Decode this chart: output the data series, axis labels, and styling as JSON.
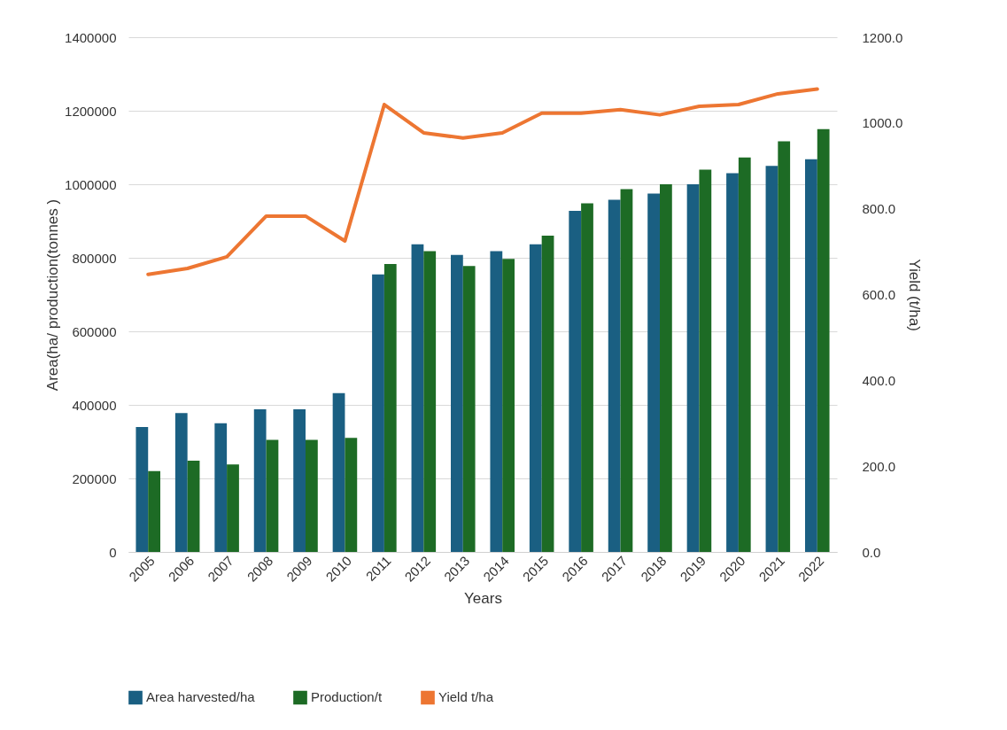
{
  "chart_data": {
    "type": "bar",
    "xlabel": "Years",
    "ylabel": "Area(ha/ production(tonnes )",
    "y2label": "Yield (t/ha)",
    "categories": [
      "2005",
      "2006",
      "2007",
      "2008",
      "2009",
      "2010",
      "2011",
      "2012",
      "2013",
      "2014",
      "2015",
      "2016",
      "2017",
      "2018",
      "2019",
      "2020",
      "2021",
      "2022"
    ],
    "series": [
      {
        "name": "Area harvested/ha",
        "color": "#1a5f82",
        "values": [
          340000,
          378000,
          350000,
          388000,
          388000,
          432000,
          755000,
          837000,
          808000,
          818000,
          837000,
          928000,
          958000,
          975000,
          1000000,
          1030000,
          1050000,
          1068000
        ]
      },
      {
        "name": "Production/t",
        "color": "#1d6b25",
        "values": [
          220000,
          248000,
          238000,
          305000,
          305000,
          310000,
          783000,
          818000,
          778000,
          797000,
          860000,
          948000,
          987000,
          1000000,
          1040000,
          1073000,
          1117000,
          1150000
        ]
      },
      {
        "name": "Yield t/ha",
        "type": "line",
        "axis": "y2",
        "color": "#ed7632",
        "values": [
          647,
          661,
          688,
          783,
          783,
          725,
          1043,
          977,
          965,
          977,
          1023,
          1023,
          1031,
          1019,
          1039,
          1043,
          1068,
          1079
        ]
      }
    ],
    "ylim": [
      0,
      1400000
    ],
    "yticks": [
      0,
      200000,
      400000,
      600000,
      800000,
      1000000,
      1200000,
      1400000
    ],
    "y2lim": [
      0,
      1200
    ],
    "y2ticks": [
      {
        "value": 0,
        "label": "0.0"
      },
      {
        "value": 200,
        "label": "200.0"
      },
      {
        "value": 400,
        "label": "400.0"
      },
      {
        "value": 600,
        "label": "600.0"
      },
      {
        "value": 800,
        "label": "800.0"
      },
      {
        "value": 1000,
        "label": "1000.0"
      },
      {
        "value": 1200,
        "label": "1200.0"
      }
    ],
    "grid": "y",
    "legend": "bottom"
  }
}
